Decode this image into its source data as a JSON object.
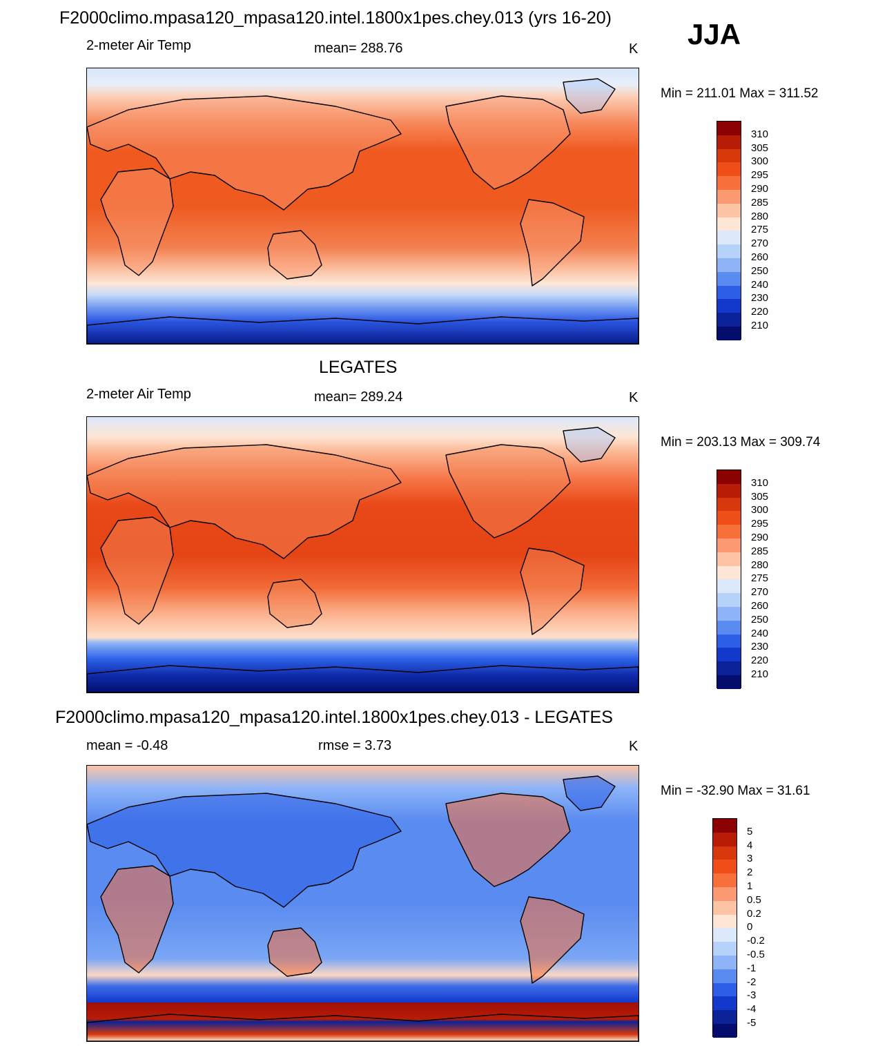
{
  "season": "JJA",
  "panels": [
    {
      "title": "F2000climo.mpasa120_mpasa120.intel.1800x1pes.chey.013 (yrs 16-20)",
      "left_label": "2-meter Air Temp",
      "center_label": "mean= 288.76",
      "units": "K",
      "minmax": "Min = 211.01 Max = 311.52",
      "colorbar": {
        "labels": [
          "310",
          "305",
          "300",
          "295",
          "290",
          "285",
          "280",
          "275",
          "270",
          "260",
          "250",
          "240",
          "230",
          "220",
          "210"
        ],
        "colors": [
          "#8b0000",
          "#b81c06",
          "#d7380c",
          "#f04e18",
          "#f7703a",
          "#fb9a72",
          "#fcc4a4",
          "#fde6d6",
          "#dbe9fb",
          "#b7d2fa",
          "#8eb4f7",
          "#5a8bf0",
          "#2c5fe6",
          "#1238cc",
          "#0b2299",
          "#040d6e"
        ]
      },
      "map_style": "model"
    },
    {
      "title": "LEGATES",
      "left_label": "2-meter Air Temp",
      "center_label": "mean= 289.24",
      "units": "K",
      "minmax": "Min = 203.13 Max = 309.74",
      "colorbar": {
        "labels": [
          "310",
          "305",
          "300",
          "295",
          "290",
          "285",
          "280",
          "275",
          "270",
          "260",
          "250",
          "240",
          "230",
          "220",
          "210"
        ],
        "colors": [
          "#8b0000",
          "#b81c06",
          "#d7380c",
          "#f04e18",
          "#f7703a",
          "#fb9a72",
          "#fcc4a4",
          "#fde6d6",
          "#dbe9fb",
          "#b7d2fa",
          "#8eb4f7",
          "#5a8bf0",
          "#2c5fe6",
          "#1238cc",
          "#0b2299",
          "#040d6e"
        ]
      },
      "map_style": "obs"
    },
    {
      "title": "F2000climo.mpasa120_mpasa120.intel.1800x1pes.chey.013 - LEGATES",
      "left_label": "mean =  -0.48",
      "center_label": "rmse =    3.73",
      "units": "K",
      "minmax": "Min = -32.90 Max =  31.61",
      "colorbar": {
        "labels": [
          "5",
          "4",
          "3",
          "2",
          "1",
          "0.5",
          "0.2",
          "0",
          "-0.2",
          "-0.5",
          "-1",
          "-2",
          "-3",
          "-4",
          "-5"
        ],
        "colors": [
          "#8b0000",
          "#b81c06",
          "#d7380c",
          "#f04e18",
          "#f7703a",
          "#fb9a72",
          "#fcc4a4",
          "#fde6d6",
          "#dbe9fb",
          "#b7d2fa",
          "#8eb4f7",
          "#5a8bf0",
          "#2c5fe6",
          "#1238cc",
          "#0b2299",
          "#040d6e"
        ]
      },
      "map_style": "diff"
    }
  ]
}
